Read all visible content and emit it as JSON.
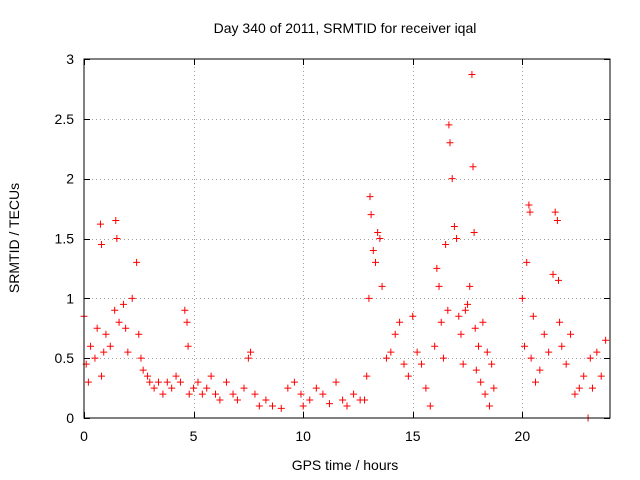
{
  "chart_data": {
    "type": "scatter",
    "title": "Day 340 of 2011, SRMTID for receiver iqal",
    "xlabel": "GPS time / hours",
    "ylabel": "SRMTID / TECUs",
    "xlim": [
      0,
      24
    ],
    "ylim": [
      0,
      3
    ],
    "xticks": [
      0,
      5,
      10,
      15,
      20
    ],
    "yticks": [
      0,
      0.5,
      1,
      1.5,
      2,
      2.5,
      3
    ],
    "grid": true,
    "marker": "plus",
    "marker_color": "#ff0000",
    "series": [
      {
        "name": "SRMTID",
        "x": [
          0.0,
          0.1,
          0.2,
          0.3,
          0.5,
          0.6,
          0.75,
          0.8,
          0.8,
          0.9,
          1.0,
          1.2,
          1.4,
          1.45,
          1.5,
          1.6,
          1.8,
          1.9,
          2.0,
          2.2,
          2.4,
          2.5,
          2.6,
          2.7,
          2.9,
          3.0,
          3.2,
          3.4,
          3.6,
          3.8,
          4.0,
          4.2,
          4.4,
          4.6,
          4.7,
          4.75,
          4.8,
          5.0,
          5.2,
          5.4,
          5.6,
          5.8,
          6.0,
          6.2,
          6.5,
          6.8,
          7.0,
          7.3,
          7.5,
          7.6,
          7.8,
          8.0,
          8.3,
          8.6,
          9.0,
          9.3,
          9.6,
          9.9,
          10.0,
          10.3,
          10.6,
          10.9,
          11.2,
          11.5,
          11.8,
          12.0,
          12.3,
          12.6,
          12.8,
          12.9,
          13.0,
          13.05,
          13.1,
          13.2,
          13.3,
          13.4,
          13.5,
          13.6,
          13.8,
          14.0,
          14.2,
          14.4,
          14.6,
          14.8,
          15.0,
          15.2,
          15.4,
          15.6,
          15.8,
          16.0,
          16.1,
          16.2,
          16.3,
          16.4,
          16.5,
          16.6,
          16.65,
          16.7,
          16.8,
          16.9,
          17.0,
          17.1,
          17.2,
          17.3,
          17.4,
          17.5,
          17.6,
          17.7,
          17.75,
          17.8,
          17.85,
          17.9,
          18.0,
          18.1,
          18.2,
          18.3,
          18.4,
          18.5,
          18.6,
          18.7,
          20.0,
          20.1,
          20.2,
          20.3,
          20.35,
          20.4,
          20.5,
          20.6,
          20.8,
          21.0,
          21.2,
          21.4,
          21.5,
          21.6,
          21.65,
          21.7,
          21.8,
          22.0,
          22.2,
          22.4,
          22.6,
          22.8,
          23.0,
          23.1,
          23.2,
          23.4,
          23.6,
          23.8
        ],
        "y": [
          0.85,
          0.45,
          0.3,
          0.6,
          0.5,
          0.75,
          1.62,
          1.45,
          0.35,
          0.55,
          0.7,
          0.6,
          0.9,
          1.65,
          1.5,
          0.8,
          0.95,
          0.75,
          0.55,
          1.0,
          1.3,
          0.7,
          0.5,
          0.4,
          0.35,
          0.3,
          0.25,
          0.3,
          0.2,
          0.3,
          0.25,
          0.35,
          0.3,
          0.9,
          0.8,
          0.6,
          0.2,
          0.25,
          0.3,
          0.2,
          0.25,
          0.35,
          0.2,
          0.15,
          0.3,
          0.2,
          0.15,
          0.25,
          0.5,
          0.55,
          0.2,
          0.1,
          0.15,
          0.1,
          0.08,
          0.25,
          0.3,
          0.2,
          0.1,
          0.15,
          0.25,
          0.2,
          0.12,
          0.3,
          0.15,
          0.1,
          0.2,
          0.15,
          0.15,
          0.35,
          1.0,
          1.85,
          1.7,
          1.4,
          1.3,
          1.55,
          1.5,
          1.1,
          0.5,
          0.55,
          0.7,
          0.8,
          0.45,
          0.35,
          0.85,
          0.55,
          0.45,
          0.25,
          0.1,
          0.6,
          1.25,
          1.1,
          0.8,
          0.5,
          1.45,
          0.9,
          2.45,
          2.3,
          2.0,
          1.6,
          1.5,
          0.85,
          0.7,
          0.45,
          0.9,
          0.95,
          1.1,
          2.87,
          2.1,
          1.55,
          0.75,
          0.4,
          0.6,
          0.3,
          0.8,
          0.2,
          0.55,
          0.1,
          0.45,
          0.25,
          1.0,
          0.6,
          1.3,
          1.78,
          1.72,
          0.5,
          0.85,
          0.3,
          0.4,
          0.7,
          0.55,
          1.2,
          1.72,
          1.65,
          1.15,
          0.8,
          0.6,
          0.45,
          0.7,
          0.2,
          0.25,
          0.35,
          0.0,
          0.5,
          0.25,
          0.55,
          0.35,
          0.65
        ]
      }
    ]
  }
}
